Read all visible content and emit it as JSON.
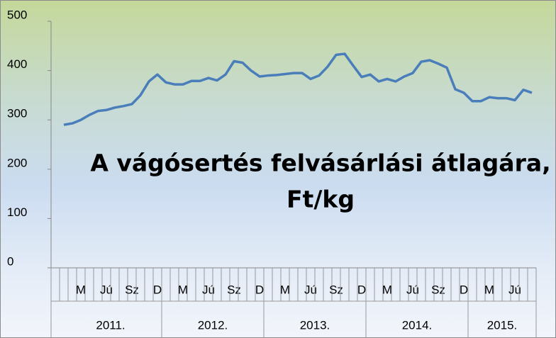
{
  "chart_data": {
    "type": "line",
    "title": [
      "A vágósertés felvásárlási átlagára,",
      "Ft/kg"
    ],
    "categories": [
      null,
      null,
      "M",
      null,
      null,
      "Jú",
      null,
      null,
      "Sz",
      null,
      null,
      "D",
      null,
      null,
      "M",
      null,
      null,
      "Jú",
      null,
      null,
      "Sz",
      null,
      null,
      "D",
      null,
      null,
      "M",
      null,
      null,
      "Jú",
      null,
      null,
      "Sz",
      null,
      null,
      "D",
      null,
      null,
      "M",
      null,
      null,
      "Jú",
      null,
      null,
      "Sz",
      null,
      null,
      "D",
      null,
      null,
      "M",
      null,
      null,
      "Jú",
      null,
      null
    ],
    "groups": [
      {
        "label": "2011.",
        "span": 12
      },
      {
        "label": "2012.",
        "span": 12
      },
      {
        "label": "2013.",
        "span": 12
      },
      {
        "label": "2014.",
        "span": 12
      },
      {
        "label": "2015.",
        "span": 8
      }
    ],
    "series": [
      {
        "name": "Ft/kg",
        "color": "#4a7ebb",
        "values": [
          290,
          293,
          300,
          310,
          318,
          320,
          325,
          328,
          332,
          350,
          378,
          392,
          376,
          372,
          372,
          379,
          379,
          385,
          380,
          392,
          419,
          416,
          400,
          388,
          390,
          391,
          393,
          395,
          395,
          383,
          390,
          408,
          432,
          434,
          410,
          387,
          392,
          378,
          383,
          378,
          388,
          395,
          418,
          421,
          414,
          406,
          362,
          355,
          338,
          338,
          346,
          344,
          344,
          340,
          361,
          355
        ]
      }
    ],
    "ylim": [
      0,
      500
    ],
    "yticks": [
      0,
      100,
      200,
      300,
      400,
      500
    ],
    "grid": false
  }
}
